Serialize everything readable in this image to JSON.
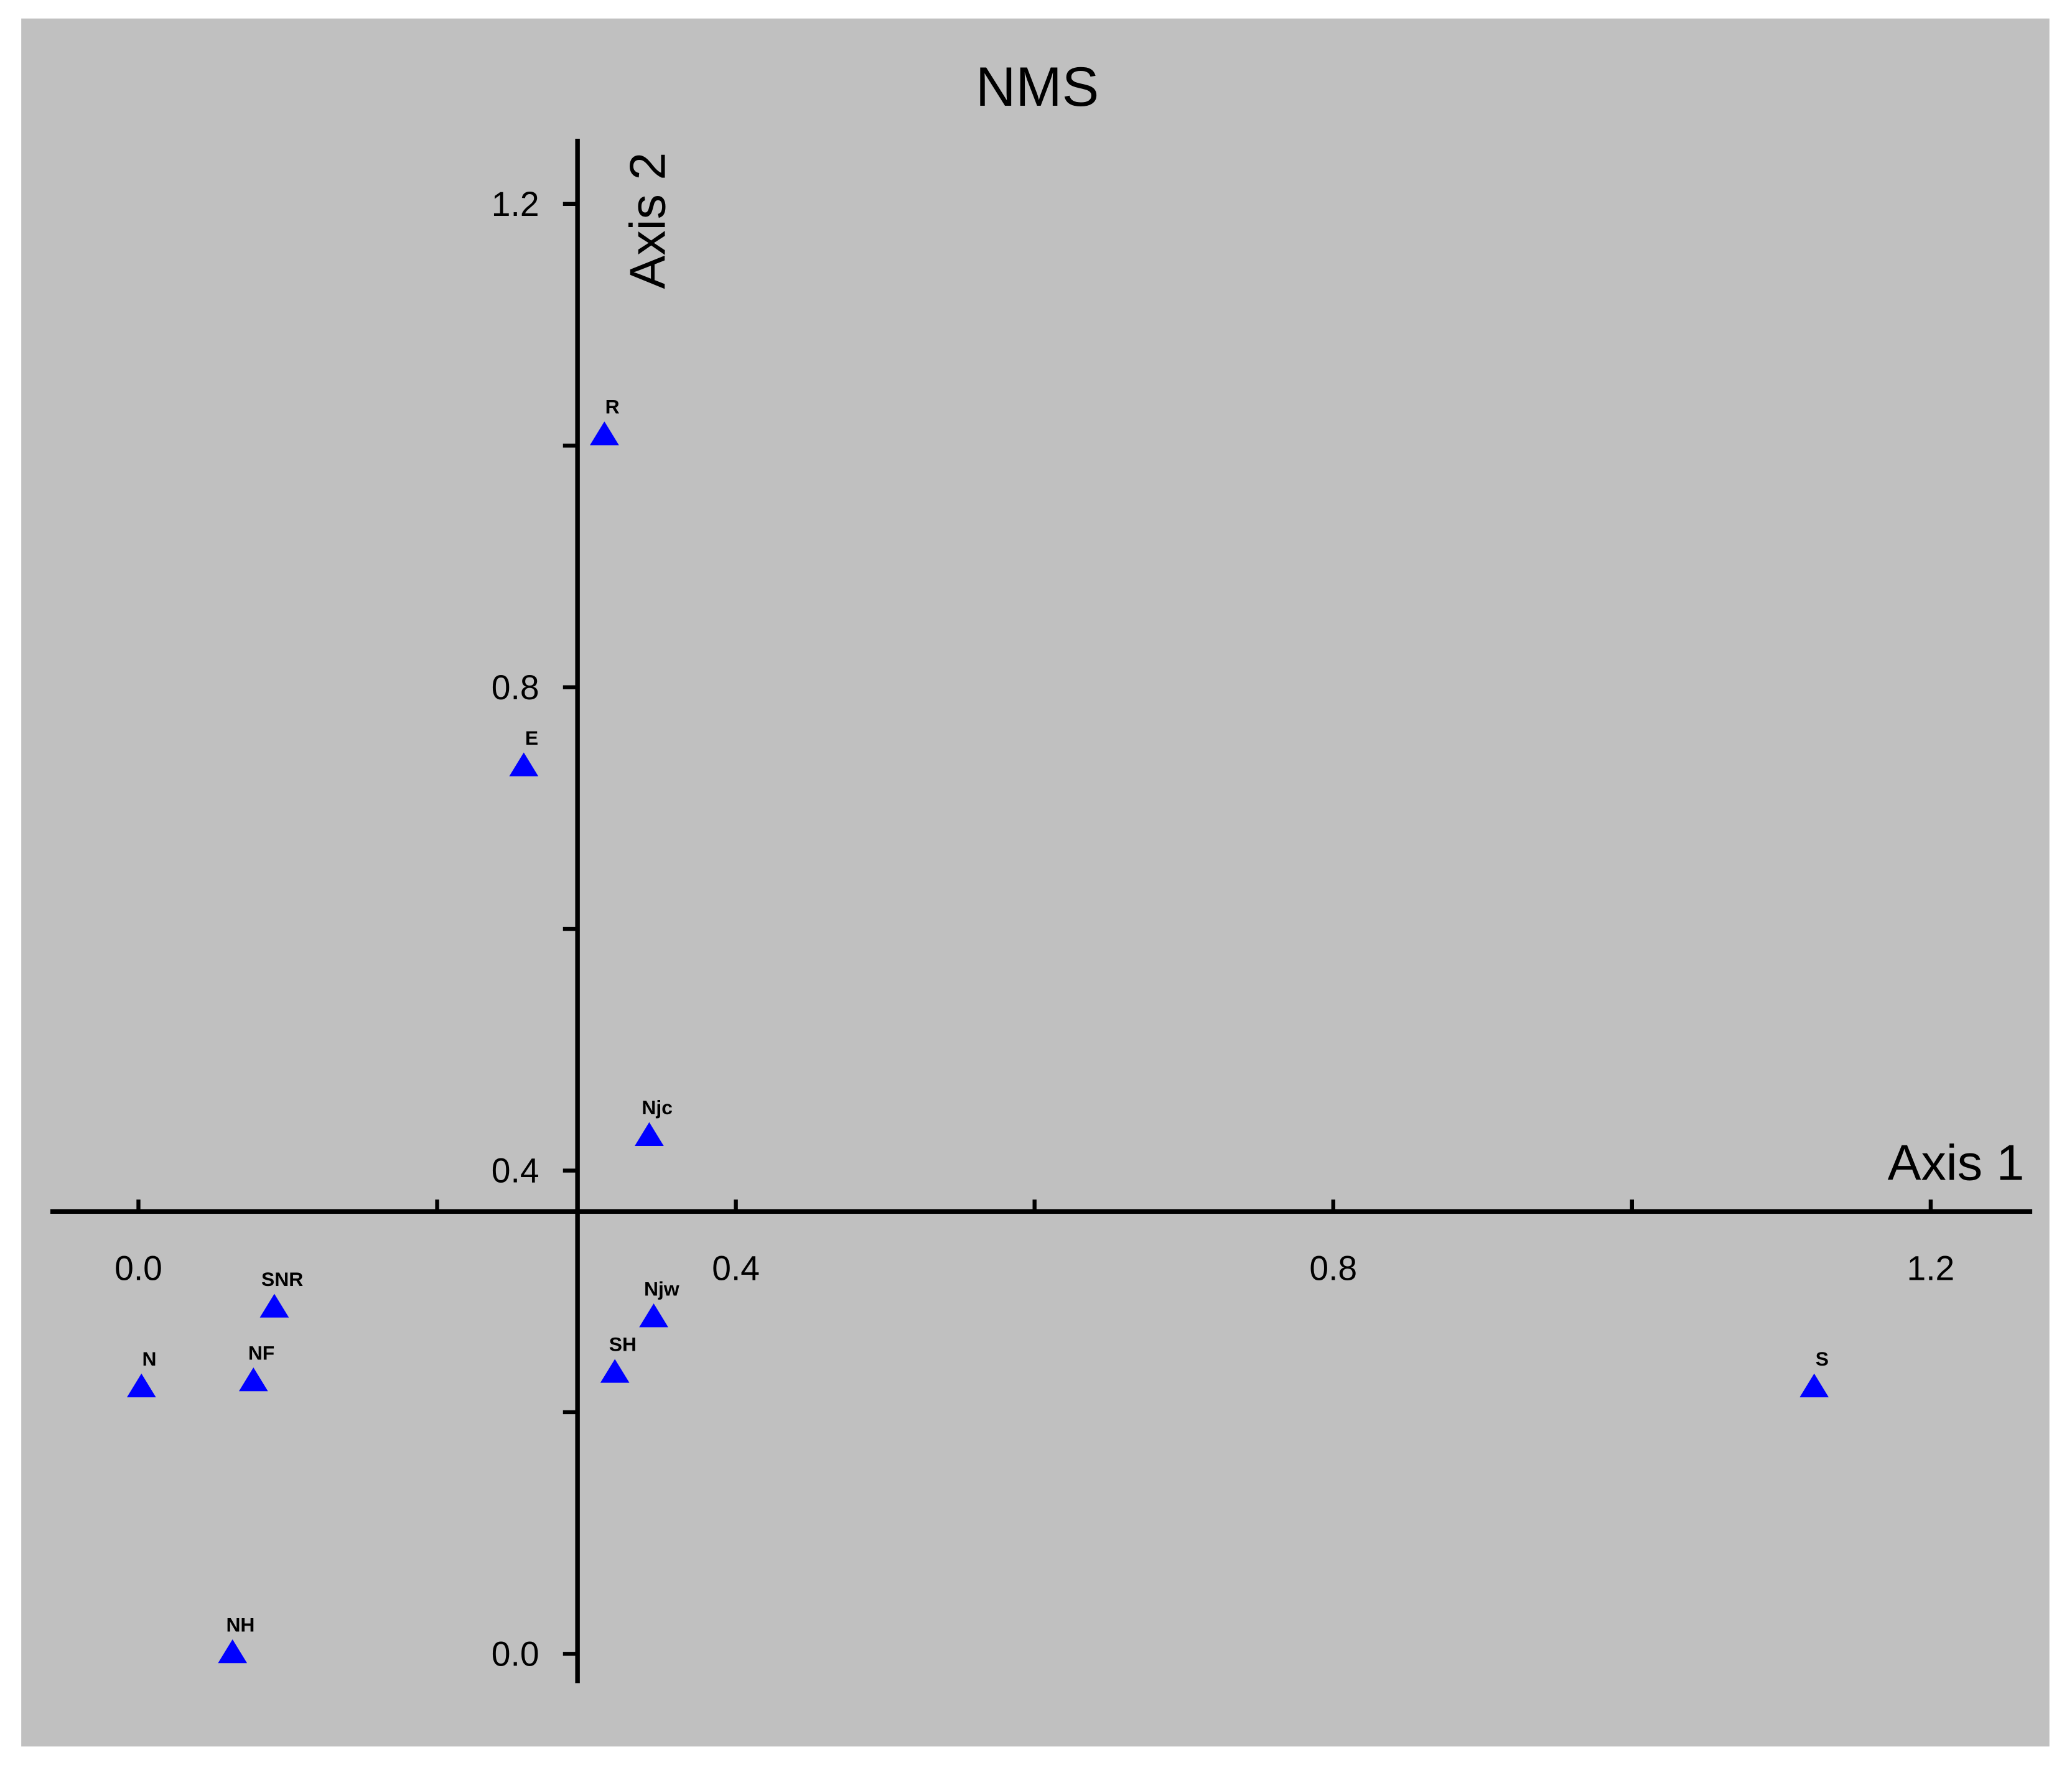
{
  "chart_data": {
    "type": "scatter",
    "title": "NMS",
    "x_label": "Axis 1",
    "y_label": "Axis 2",
    "labels": [
      "R",
      "E",
      "Njc",
      "SNR",
      "Njw",
      "N",
      "NF",
      "SH",
      "S",
      "NH"
    ],
    "x": [
      0.312,
      0.258,
      0.342,
      0.091,
      0.345,
      0.002,
      0.077,
      0.319,
      1.122,
      0.063
    ],
    "y": [
      1.008,
      0.734,
      0.428,
      0.286,
      0.278,
      0.22,
      0.225,
      0.232,
      0.22,
      0.0
    ],
    "color": "#0000ff",
    "marker": "triangle",
    "xlim": [
      -0.059,
      1.268
    ],
    "ylim": [
      -0.022,
      1.254
    ],
    "xticks": [
      {
        "value": 0,
        "label": "0.0"
      },
      0.4,
      0.8,
      1.2
    ],
    "yticks": [
      {
        "value": 0,
        "label": "0.0"
      },
      0.4,
      0.8,
      1.2
    ],
    "xminor_ticks": [
      0.2,
      0.6,
      1.0
    ],
    "yminor_ticks": [
      0.2,
      0.6,
      1.0
    ]
  }
}
